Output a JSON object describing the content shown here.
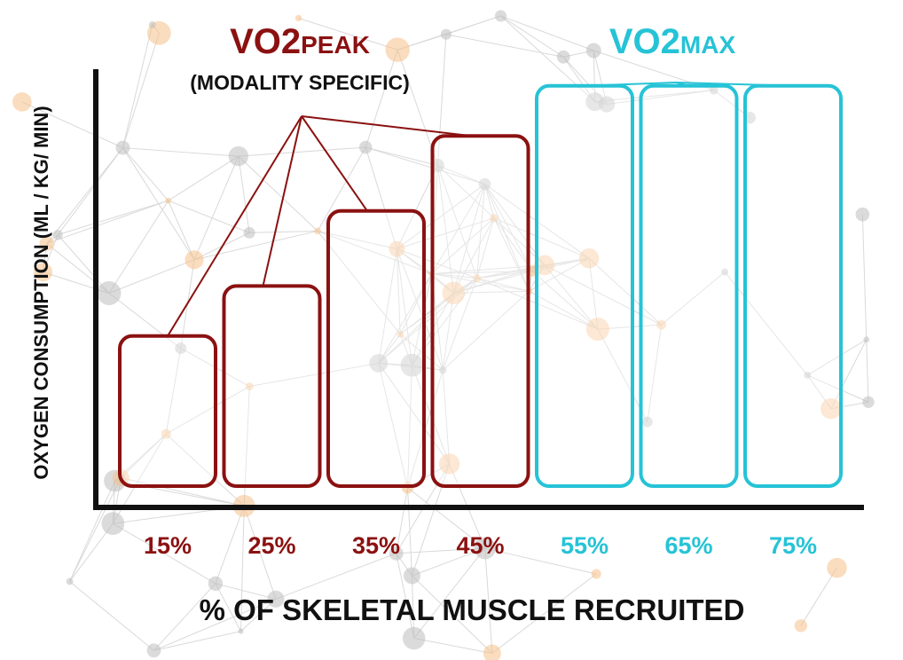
{
  "colors": {
    "peak": "#8b1111",
    "max": "#26c3d6",
    "axis": "#111111",
    "net_line": "#d9d9d9",
    "node_gray": "#bdbdbd",
    "node_orange": "#f6c089"
  },
  "chart_data": {
    "type": "bar",
    "title": "",
    "xlabel": "% OF SKELETAL MUSCLE RECRUITED",
    "ylabel": "OXYGEN CONSUMPTION (ML / KG/ MIN)",
    "y_scale": "relative (no numeric ticks)",
    "ylim": [
      0,
      100
    ],
    "grid": false,
    "categories": [
      "15%",
      "25%",
      "35%",
      "45%",
      "55%",
      "65%",
      "75%"
    ],
    "values": [
      36,
      48,
      66,
      84,
      96,
      96,
      96
    ],
    "groups": [
      {
        "label_main": "VO2",
        "label_sub": "PEAK",
        "note": "(MODALITY SPECIFIC)",
        "color": "#8b1111",
        "indices": [
          0,
          1,
          2,
          3
        ]
      },
      {
        "label_main": "VO2",
        "label_sub": "MAX",
        "note": "",
        "color": "#26c3d6",
        "indices": [
          4,
          5,
          6
        ]
      }
    ]
  }
}
